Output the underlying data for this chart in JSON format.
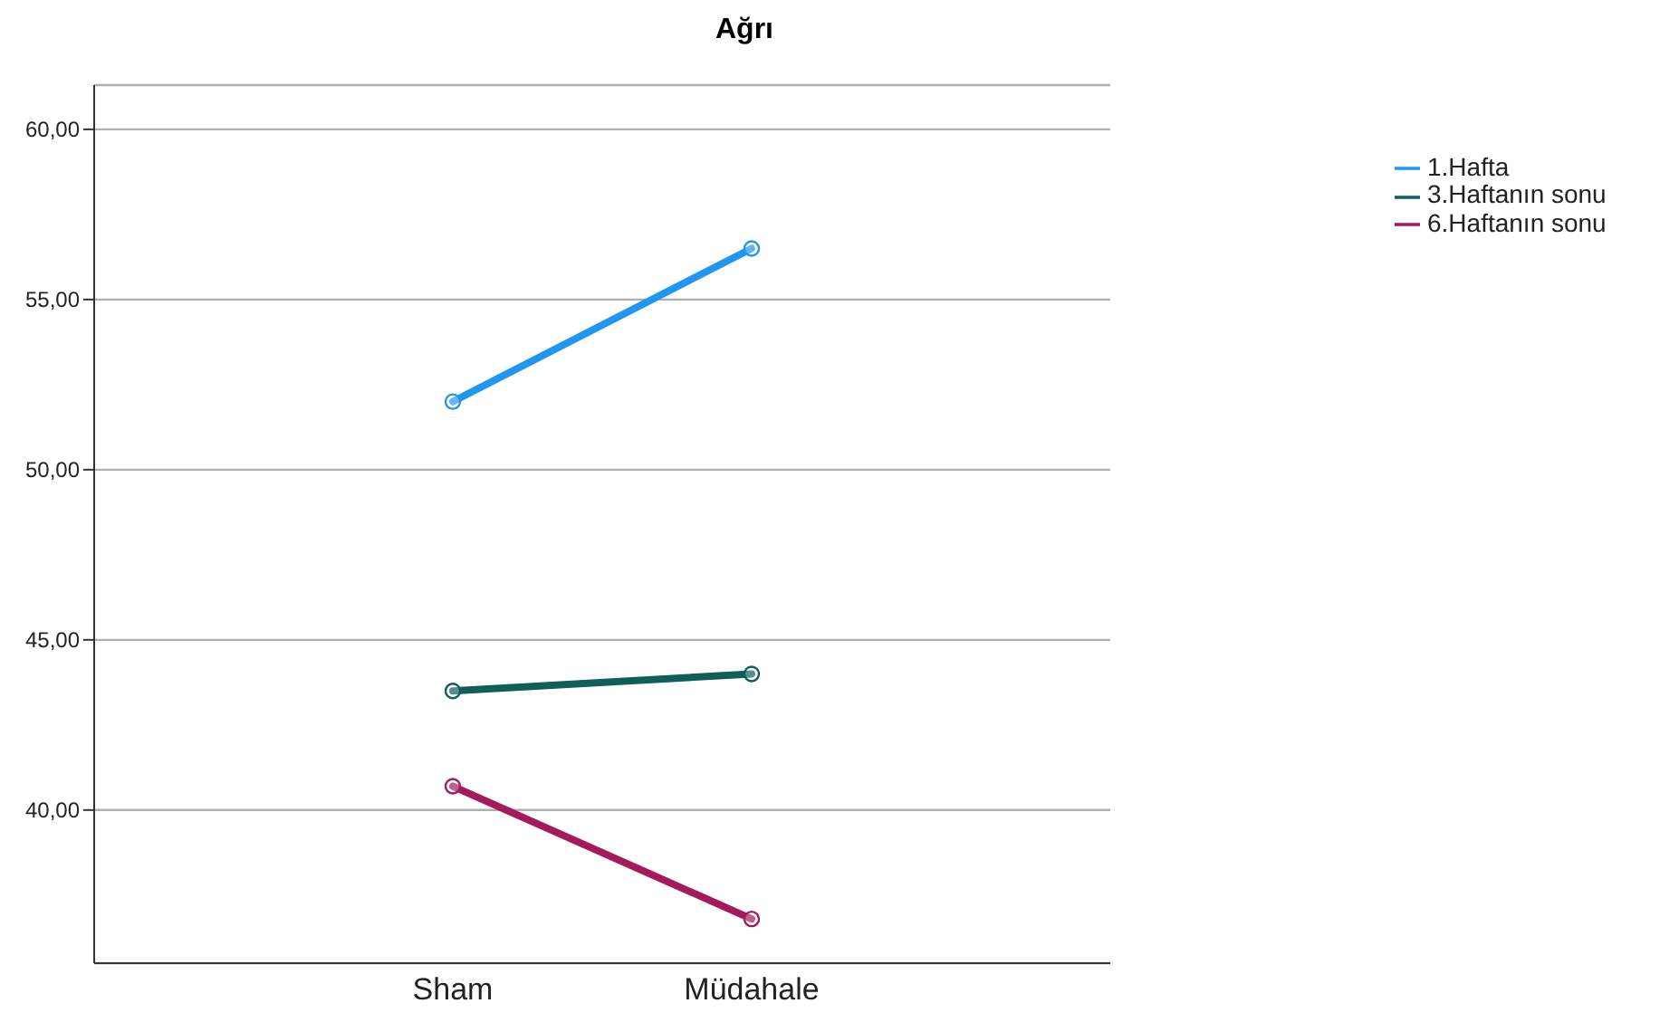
{
  "chart_data": {
    "type": "line",
    "title": "Ağrı",
    "categories": [
      "Sham",
      "Müdahale"
    ],
    "series": [
      {
        "name": "1.Hafta",
        "color": "#2196f0",
        "values": [
          52.0,
          56.5
        ]
      },
      {
        "name": "3.Haftanın sonu",
        "color": "#0f5e5a",
        "values": [
          43.5,
          44.0
        ]
      },
      {
        "name": "6.Haftanın sonu",
        "color": "#a31b5c",
        "values": [
          40.7,
          36.8
        ]
      }
    ],
    "ylim": [
      35.5,
      61.3
    ],
    "yticks": [
      {
        "value": 40,
        "label": "40,00"
      },
      {
        "value": 45,
        "label": "45,00"
      },
      {
        "value": 50,
        "label": "50,00"
      },
      {
        "value": 55,
        "label": "55,00"
      },
      {
        "value": 60,
        "label": "60,00"
      }
    ],
    "grid": "y",
    "legend": "top right",
    "marker": "circle",
    "line_style": "solid"
  }
}
